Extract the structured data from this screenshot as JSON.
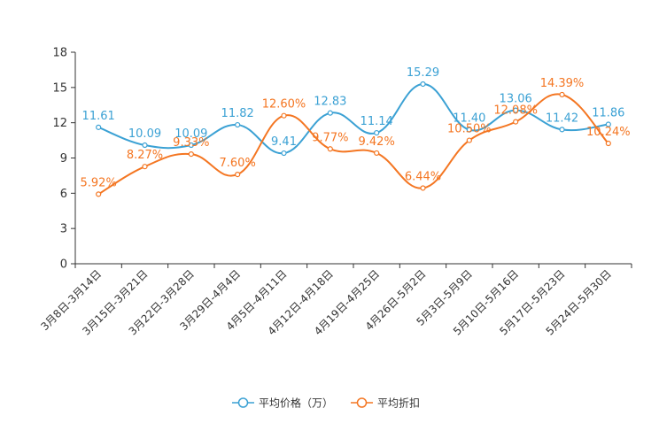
{
  "chart_data": {
    "type": "line",
    "categories": [
      "3月8日-3月14日",
      "3月15日-3月21日",
      "3月22日-3月28日",
      "3月29日-4月4日",
      "4月5日-4月11日",
      "4月12日-4月18日",
      "4月19日-4月25日",
      "4月26日-5月2日",
      "5月3日-5月9日",
      "5月10日-5月16日",
      "5月17日-5月23日",
      "5月24日-5月30日"
    ],
    "ylim": [
      0,
      18
    ],
    "yticks": [
      "0",
      "3",
      "6",
      "9",
      "12",
      "15",
      "18"
    ],
    "series": [
      {
        "name": "平均价格（万）",
        "color": "#3ba1d4",
        "values": [
          11.61,
          10.09,
          10.09,
          11.82,
          9.41,
          12.83,
          11.14,
          15.29,
          11.4,
          13.06,
          11.42,
          11.86
        ],
        "labels": [
          "11.61",
          "10.09",
          "10.09",
          "11.82",
          "9.41",
          "12.83",
          "11.14",
          "15.29",
          "11.40",
          "13.06",
          "11.42",
          "11.86"
        ]
      },
      {
        "name": "平均折扣",
        "color": "#f47622",
        "values": [
          5.92,
          8.27,
          9.33,
          7.6,
          12.6,
          9.77,
          9.42,
          6.44,
          10.5,
          12.08,
          14.39,
          10.24
        ],
        "labels": [
          "5.92%",
          "8.27%",
          "9.33%",
          "7.60%",
          "12.60%",
          "9.77%",
          "9.42%",
          "6.44%",
          "10.50%",
          "12.08%",
          "14.39%",
          "10.24%"
        ]
      }
    ]
  }
}
